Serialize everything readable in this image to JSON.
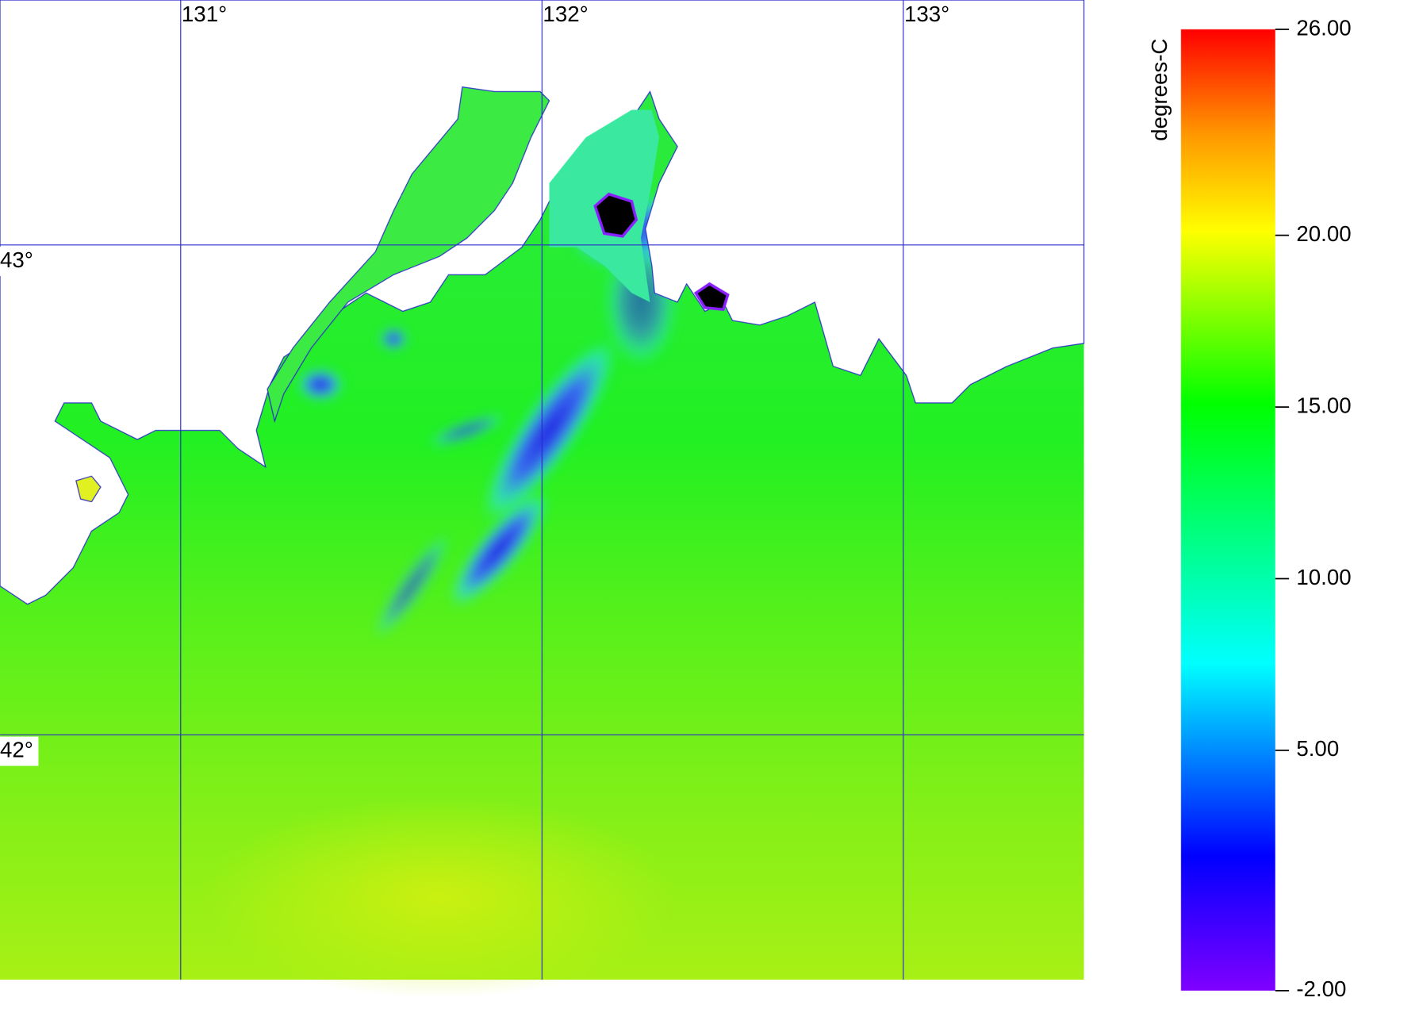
{
  "chart_data": {
    "type": "map",
    "colorbar_label": "degrees-C",
    "colorbar_lim": [
      -2,
      26
    ],
    "colorbar_ticks": [
      {
        "value": 26,
        "label": "26.00"
      },
      {
        "value": 20,
        "label": "20.00"
      },
      {
        "value": 15,
        "label": "15.00"
      },
      {
        "value": 10,
        "label": "10.00"
      },
      {
        "value": 5,
        "label": "5.00"
      },
      {
        "value": -2,
        "label": "-2.00"
      }
    ],
    "xlim": [
      130.5,
      133.5
    ],
    "xticks": [
      {
        "value": 131,
        "label": "131°"
      },
      {
        "value": 132,
        "label": "132°"
      },
      {
        "value": 133,
        "label": "133°"
      }
    ],
    "ylim": [
      41.5,
      43.5
    ],
    "yticks": [
      {
        "value": 43,
        "label": "43°"
      },
      {
        "value": 42,
        "label": "42°"
      }
    ],
    "grid_color": "#2a2acc"
  }
}
